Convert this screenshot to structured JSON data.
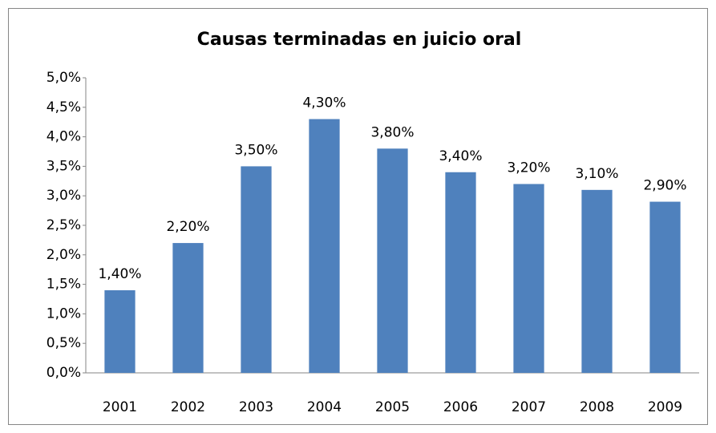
{
  "chart_data": {
    "type": "bar",
    "title": "Causas terminadas en juicio oral",
    "categories": [
      "2001",
      "2002",
      "2003",
      "2004",
      "2005",
      "2006",
      "2007",
      "2008",
      "2009"
    ],
    "values": [
      1.4,
      2.2,
      3.5,
      4.3,
      3.8,
      3.4,
      3.2,
      3.1,
      2.9
    ],
    "value_labels": [
      "1,40%",
      "2,20%",
      "3,50%",
      "4,30%",
      "3,80%",
      "3,40%",
      "3,20%",
      "3,10%",
      "2,90%"
    ],
    "color": "#4f81bd",
    "ylim": [
      0,
      5
    ],
    "yticks": [
      {
        "value": 0,
        "label": "0,0%"
      },
      {
        "value": 0.5,
        "label": "0,5%"
      },
      {
        "value": 1,
        "label": "1,0%"
      },
      {
        "value": 1.5,
        "label": "1,5%"
      },
      {
        "value": 2,
        "label": "2,0%"
      },
      {
        "value": 2.5,
        "label": "2,5%"
      },
      {
        "value": 3,
        "label": "3,0%"
      },
      {
        "value": 3.5,
        "label": "3,5%"
      },
      {
        "value": 4,
        "label": "4,0%"
      },
      {
        "value": 4.5,
        "label": "4,5%"
      },
      {
        "value": 5,
        "label": "5,0%"
      }
    ],
    "grid": false
  }
}
